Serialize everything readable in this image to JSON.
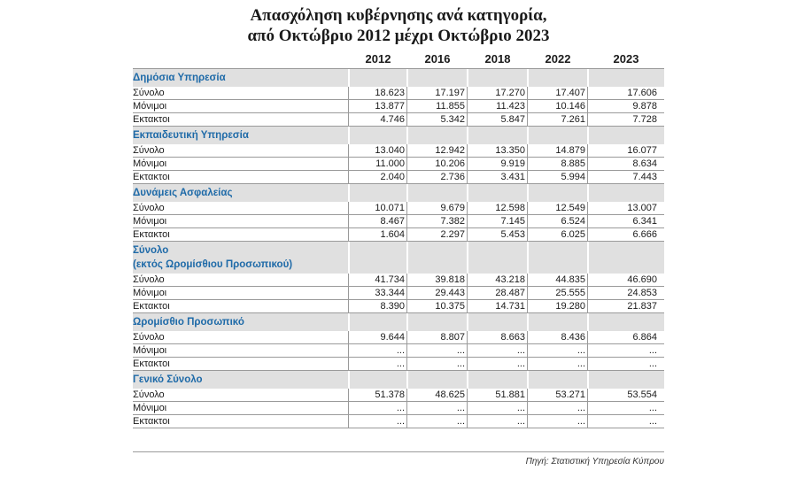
{
  "title": {
    "line1": "Απασχόληση κυβέρνησης ανά κατηγορία,",
    "line2": "από Οκτώβριο 2012 μέχρι Οκτώβριο 2023"
  },
  "years": [
    "2012",
    "2016",
    "2018",
    "2022",
    "2023"
  ],
  "sections": [
    {
      "label": "Δημόσια Υπηρεσία",
      "rows": [
        {
          "label": "Σύνολο",
          "values": [
            "18.623",
            "17.197",
            "17.270",
            "17.407",
            "17.606"
          ]
        },
        {
          "label": "Μόνιμοι",
          "values": [
            "13.877",
            "11.855",
            "11.423",
            "10.146",
            "9.878"
          ]
        },
        {
          "label": "Εκτακτοι",
          "values": [
            "4.746",
            "5.342",
            "5.847",
            "7.261",
            "7.728"
          ]
        }
      ]
    },
    {
      "label": "Εκπαιδευτική Υπηρεσία",
      "rows": [
        {
          "label": "Σύνολο",
          "values": [
            "13.040",
            "12.942",
            "13.350",
            "14.879",
            "16.077"
          ]
        },
        {
          "label": "Μόνιμοι",
          "values": [
            "11.000",
            "10.206",
            "9.919",
            "8.885",
            "8.634"
          ]
        },
        {
          "label": "Εκτακτοι",
          "values": [
            "2.040",
            "2.736",
            "3.431",
            "5.994",
            "7.443"
          ]
        }
      ]
    },
    {
      "label": "Δυνάμεις Ασφαλείας",
      "rows": [
        {
          "label": "Σύνολο",
          "values": [
            "10.071",
            "9.679",
            "12.598",
            "12.549",
            "13.007"
          ]
        },
        {
          "label": "Μόνιμοι",
          "values": [
            "8.467",
            "7.382",
            "7.145",
            "6.524",
            "6.341"
          ]
        },
        {
          "label": "Εκτακτοι",
          "values": [
            "1.604",
            "2.297",
            "5.453",
            "6.025",
            "6.666"
          ]
        }
      ]
    },
    {
      "label": "Σύνολο",
      "label2": "(εκτός Ωρομίσθιου Προσωπικού)",
      "rows": [
        {
          "label": "Σύνολο",
          "values": [
            "41.734",
            "39.818",
            "43.218",
            "44.835",
            "46.690"
          ]
        },
        {
          "label": "Μόνιμοι",
          "values": [
            "33.344",
            "29.443",
            "28.487",
            "25.555",
            "24.853"
          ]
        },
        {
          "label": "Εκτακτοι",
          "values": [
            "8.390",
            "10.375",
            "14.731",
            "19.280",
            "21.837"
          ]
        }
      ]
    },
    {
      "label": "Ωρομίσθιο Προσωπικό",
      "rows": [
        {
          "label": "Σύνολο",
          "values": [
            "9.644",
            "8.807",
            "8.663",
            "8.436",
            "6.864"
          ]
        },
        {
          "label": "Μόνιμοι",
          "values": [
            "...",
            "...",
            "...",
            "...",
            "..."
          ]
        },
        {
          "label": "Εκτακτοι",
          "values": [
            "...",
            "...",
            "...",
            "...",
            "..."
          ]
        }
      ]
    },
    {
      "label": "Γενικό Σύνολο",
      "rows": [
        {
          "label": "Σύνολο",
          "values": [
            "51.378",
            "48.625",
            "51.881",
            "53.271",
            "53.554"
          ]
        },
        {
          "label": "Μόνιμοι",
          "values": [
            "...",
            "...",
            "...",
            "...",
            "..."
          ]
        },
        {
          "label": "Εκτακτοι",
          "values": [
            "...",
            "...",
            "...",
            "...",
            "..."
          ]
        }
      ]
    }
  ],
  "source": "Πηγή: Στατιστική Υπηρεσία Κύπρου"
}
